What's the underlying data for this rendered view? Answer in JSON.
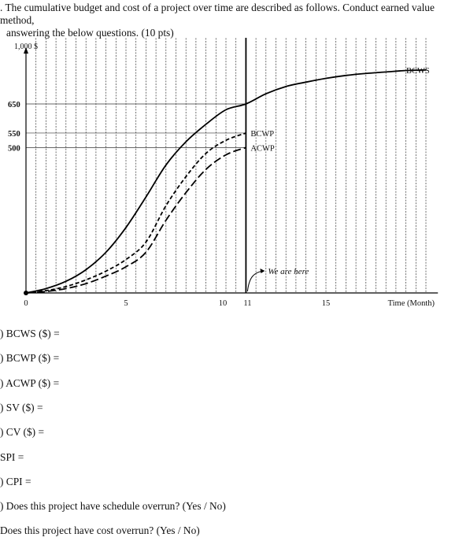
{
  "intro": {
    "line1": ". The cumulative budget and cost of a project over time are described as follows. Conduct earned value method,",
    "line2": "answering the below questions. (10 pts)"
  },
  "chart_data": {
    "type": "line",
    "title": "",
    "ylabel": "1,000 $",
    "xlabel": "Time (Month)",
    "xlim": [
      0,
      20
    ],
    "ylim": [
      0,
      1000
    ],
    "x_ticks": [
      "0",
      "5",
      "10",
      "11",
      "15"
    ],
    "y_ticks": [
      "650",
      "550",
      "500"
    ],
    "vertical_grid": "dashed lines every 0.5 month",
    "status_date": {
      "x": 11,
      "label": "We are here"
    },
    "series": [
      {
        "name": "BCWS",
        "style": "solid",
        "points": [
          [
            0,
            0
          ],
          [
            1,
            15
          ],
          [
            2,
            40
          ],
          [
            3,
            80
          ],
          [
            4,
            140
          ],
          [
            5,
            225
          ],
          [
            6,
            330
          ],
          [
            7,
            440
          ],
          [
            8,
            520
          ],
          [
            9,
            580
          ],
          [
            10,
            630
          ],
          [
            11,
            650
          ],
          [
            12,
            685
          ],
          [
            13,
            710
          ],
          [
            14,
            725
          ],
          [
            15,
            738
          ],
          [
            16,
            748
          ],
          [
            17,
            755
          ],
          [
            18,
            760
          ],
          [
            19,
            765
          ],
          [
            20,
            767
          ]
        ]
      },
      {
        "name": "BCWP",
        "style": "short-dash",
        "points": [
          [
            0,
            0
          ],
          [
            1,
            8
          ],
          [
            2,
            22
          ],
          [
            3,
            45
          ],
          [
            4,
            75
          ],
          [
            5,
            115
          ],
          [
            6,
            175
          ],
          [
            7,
            300
          ],
          [
            8,
            400
          ],
          [
            9,
            480
          ],
          [
            10,
            525
          ],
          [
            11,
            550
          ]
        ]
      },
      {
        "name": "ACWP",
        "style": "long-dash",
        "points": [
          [
            0,
            0
          ],
          [
            1,
            5
          ],
          [
            2,
            15
          ],
          [
            3,
            32
          ],
          [
            4,
            58
          ],
          [
            5,
            90
          ],
          [
            6,
            140
          ],
          [
            7,
            250
          ],
          [
            8,
            345
          ],
          [
            9,
            425
          ],
          [
            10,
            475
          ],
          [
            11,
            500
          ]
        ]
      }
    ]
  },
  "questions": [
    ") BCWS ($) =",
    ") BCWP ($) =",
    ") ACWP ($) =",
    ") SV ($) =",
    ") CV ($) =",
    " SPI =",
    ") CPI =",
    ") Does this project have schedule overrun? (Yes / No)",
    " Does this project have cost overrun? (Yes / No)"
  ]
}
